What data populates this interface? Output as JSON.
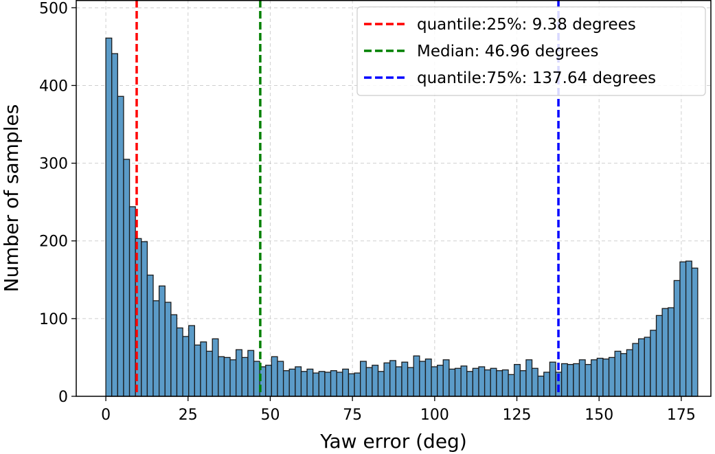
{
  "chart_data": {
    "type": "bar",
    "xlabel": "Yaw error (deg)",
    "ylabel": "Number of samples",
    "xlim": [
      -9,
      184
    ],
    "ylim": [
      0,
      510
    ],
    "x_ticks": [
      0,
      25,
      50,
      75,
      100,
      125,
      150,
      175
    ],
    "y_ticks": [
      0,
      100,
      200,
      300,
      400,
      500
    ],
    "grid": true,
    "legend_position": "top-right",
    "bin_width": 1.8,
    "bin_start": 0,
    "bar_color": "#5b9bc8",
    "counts": [
      461,
      441,
      386,
      305,
      244,
      203,
      199,
      156,
      123,
      142,
      121,
      105,
      88,
      77,
      91,
      66,
      70,
      58,
      74,
      51,
      50,
      47,
      60,
      50,
      59,
      45,
      38,
      40,
      51,
      45,
      33,
      35,
      38,
      32,
      35,
      30,
      32,
      31,
      33,
      31,
      35,
      29,
      30,
      45,
      37,
      40,
      32,
      43,
      46,
      38,
      44,
      37,
      52,
      45,
      48,
      38,
      40,
      47,
      35,
      36,
      39,
      32,
      36,
      38,
      34,
      36,
      33,
      34,
      28,
      41,
      33,
      47,
      36,
      26,
      31,
      44,
      31,
      42,
      41,
      42,
      47,
      41,
      47,
      49,
      48,
      50,
      58,
      55,
      60,
      68,
      74,
      76,
      85,
      104,
      113,
      114,
      149,
      173,
      174,
      165
    ],
    "reference_lines": [
      {
        "label": "quantile:25%: 9.38 degrees",
        "x": 9.38,
        "color": "#ff0000"
      },
      {
        "label": "Median: 46.96 degrees",
        "x": 46.96,
        "color": "#008000"
      },
      {
        "label": "quantile:75%: 137.64 degrees",
        "x": 137.64,
        "color": "#0000ff"
      }
    ]
  }
}
